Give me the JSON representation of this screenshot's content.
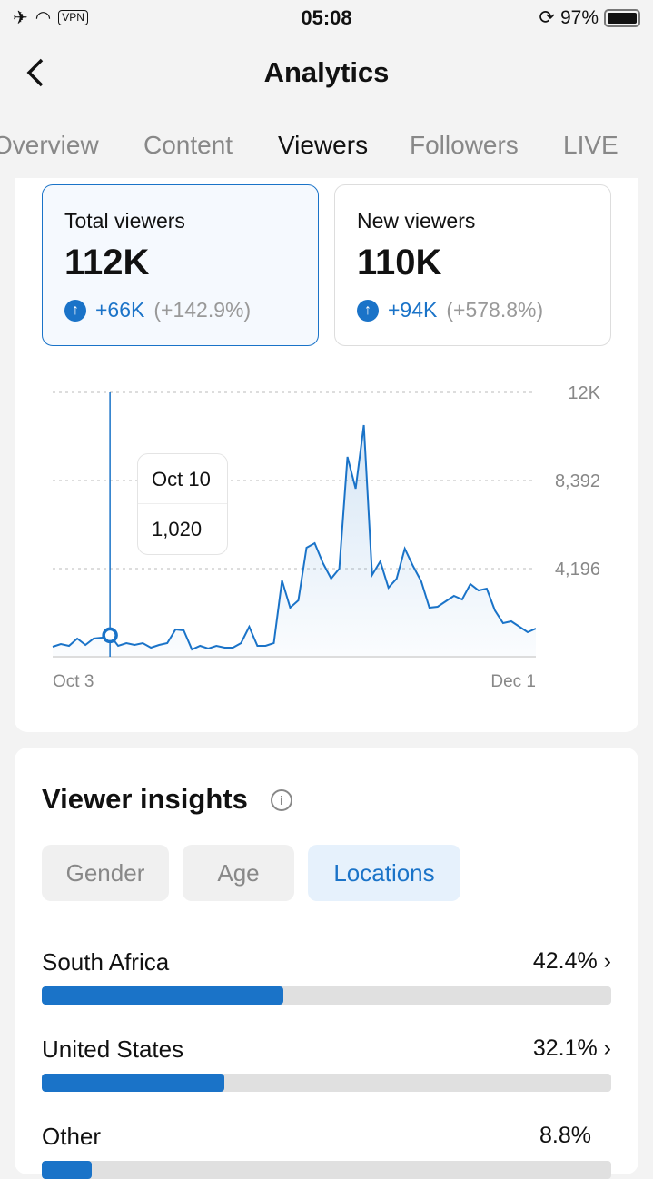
{
  "status": {
    "time": "05:08",
    "vpn": "VPN",
    "battery": "97%",
    "battery_level": 97
  },
  "nav": {
    "title": "Analytics",
    "back_icon": "chevron-left"
  },
  "tabs": [
    {
      "label": "Overview"
    },
    {
      "label": "Content"
    },
    {
      "label": "Viewers",
      "active": true
    },
    {
      "label": "Followers"
    },
    {
      "label": "LIVE"
    }
  ],
  "metrics": [
    {
      "label": "Total viewers",
      "value": "112K",
      "change": "+66K",
      "pct": "(+142.9%)",
      "selected": true
    },
    {
      "label": "New viewers",
      "value": "110K",
      "change": "+94K",
      "pct": "(+578.8%)"
    }
  ],
  "chart_data": {
    "type": "line",
    "x_start": "Oct 3",
    "x_end": "Dec 1",
    "ytick_labels": [
      "12K",
      "8,392",
      "4,196"
    ],
    "yticks": [
      12588,
      8392,
      4196
    ],
    "ylim": [
      0,
      12588
    ],
    "tooltip": {
      "date": "Oct 10",
      "value": "1,020",
      "index": 7
    },
    "values": [
      476,
      606,
      519,
      865,
      562,
      865,
      908,
      1020,
      519,
      649,
      562,
      649,
      433,
      562,
      649,
      1298,
      1255,
      346,
      519,
      389,
      519,
      433,
      433,
      649,
      1428,
      519,
      519,
      649,
      3634,
      2336,
      2682,
      5191,
      5408,
      4456,
      3720,
      4196,
      9517,
      8003,
      11031,
      3893,
      4542,
      3288,
      3720,
      5148,
      4326,
      3591,
      2336,
      2379,
      2639,
      2898,
      2725,
      3461,
      3158,
      3245,
      2206,
      1600,
      1687,
      1428,
      1168,
      1341
    ],
    "color": "#1a73c8"
  },
  "insights": {
    "title": "Viewer insights",
    "chips": [
      {
        "label": "Gender"
      },
      {
        "label": "Age"
      },
      {
        "label": "Locations",
        "selected": true
      }
    ],
    "locations": [
      {
        "name": "South Africa",
        "pct": "42.4%",
        "value": 42.4
      },
      {
        "name": "United States",
        "pct": "32.1%",
        "value": 32.1
      },
      {
        "name": "Other",
        "pct": "8.8%",
        "value": 8.8
      }
    ]
  }
}
